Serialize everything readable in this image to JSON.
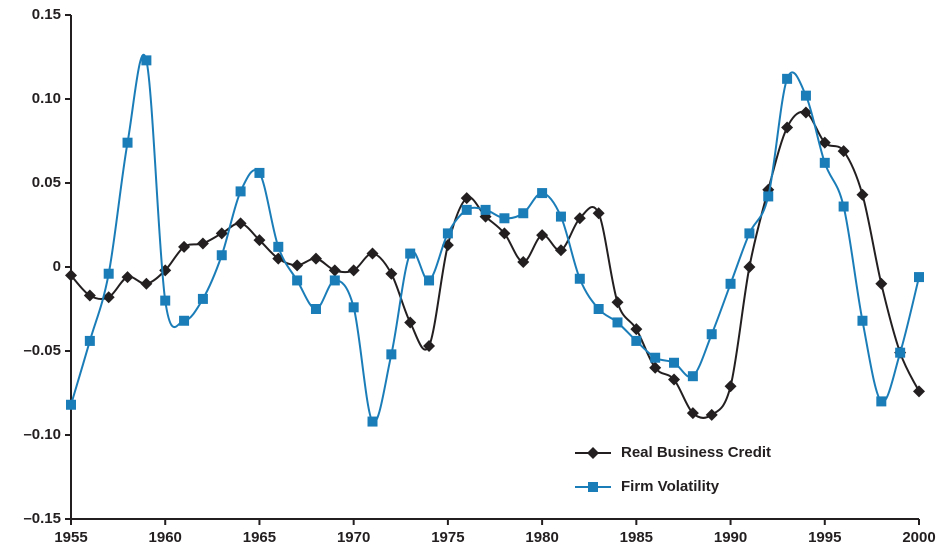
{
  "chart_data": {
    "type": "line",
    "x": [
      1955,
      1956,
      1957,
      1958,
      1959,
      1960,
      1961,
      1962,
      1963,
      1964,
      1965,
      1966,
      1967,
      1968,
      1969,
      1970,
      1971,
      1972,
      1973,
      1974,
      1975,
      1976,
      1977,
      1978,
      1979,
      1980,
      1981,
      1982,
      1983,
      1984,
      1985,
      1986,
      1987,
      1988,
      1989,
      1990,
      1991,
      1992,
      1993,
      1994,
      1995,
      1996,
      1997,
      1998,
      1999,
      2000
    ],
    "series": [
      {
        "name": "Real Business Credit",
        "color": "#231f20",
        "marker": "diamond",
        "values": [
          -0.005,
          -0.017,
          -0.018,
          -0.006,
          -0.01,
          -0.002,
          0.012,
          0.014,
          0.02,
          0.026,
          0.016,
          0.005,
          0.001,
          0.005,
          -0.002,
          -0.002,
          0.008,
          -0.004,
          -0.033,
          -0.047,
          0.013,
          0.041,
          0.03,
          0.02,
          0.003,
          0.019,
          0.01,
          0.029,
          0.032,
          -0.021,
          -0.037,
          -0.06,
          -0.067,
          -0.087,
          -0.088,
          -0.071,
          0.0,
          0.046,
          0.083,
          0.092,
          0.074,
          0.069,
          0.043,
          -0.01,
          -0.051,
          -0.074
        ]
      },
      {
        "name": "Firm Volatility",
        "color": "#1b7db8",
        "marker": "square",
        "values": [
          -0.082,
          -0.044,
          -0.004,
          0.074,
          0.123,
          -0.02,
          -0.032,
          -0.019,
          0.007,
          0.045,
          0.056,
          0.012,
          -0.008,
          -0.025,
          -0.008,
          -0.024,
          -0.092,
          -0.052,
          0.008,
          -0.008,
          0.02,
          0.034,
          0.034,
          0.029,
          0.032,
          0.044,
          0.03,
          -0.007,
          -0.025,
          -0.033,
          -0.044,
          -0.054,
          -0.057,
          -0.065,
          -0.04,
          -0.01,
          0.02,
          0.042,
          0.112,
          0.102,
          0.062,
          0.036,
          -0.032,
          -0.08,
          -0.051,
          -0.006
        ]
      }
    ],
    "xlim": [
      1955,
      2000
    ],
    "xticks": [
      1955,
      1960,
      1965,
      1970,
      1975,
      1980,
      1985,
      1990,
      1995,
      2000
    ],
    "ylim": [
      -0.15,
      0.15
    ],
    "yticks": [
      {
        "value": -0.15,
        "label": "–0.15"
      },
      {
        "value": -0.1,
        "label": "–0.10"
      },
      {
        "value": -0.05,
        "label": "–0.05"
      },
      0,
      0.05,
      {
        "value": 0.1,
        "label": "0.10"
      },
      0.15
    ],
    "grid": false,
    "legend": "lower right",
    "smooth": true
  }
}
